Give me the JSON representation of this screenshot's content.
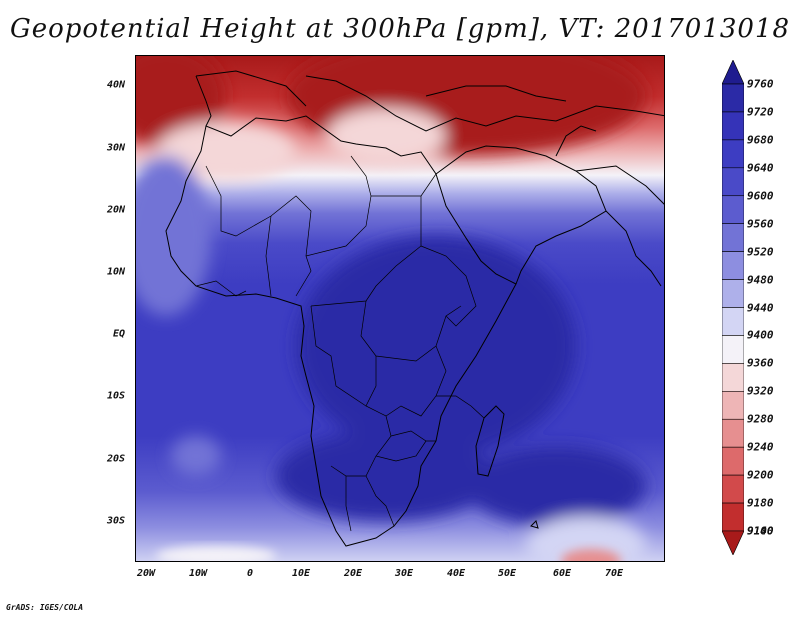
{
  "title": "Geopotential Height at 300hPa [gpm], VT: 2017013018",
  "footer": "GrADS: IGES/COLA",
  "map": {
    "projection": "latlon",
    "lon_range": [
      -23,
      80
    ],
    "lat_range": [
      -36,
      45
    ],
    "y_ticks": [
      "40N",
      "30N",
      "20N",
      "10N",
      "EQ",
      "10S",
      "20S",
      "30S"
    ],
    "x_ticks": [
      "20W",
      "10W",
      "0",
      "10E",
      "20E",
      "30E",
      "40E",
      "50E",
      "60E",
      "70E"
    ]
  },
  "colorbar": {
    "levels": [
      "9760",
      "9720",
      "9680",
      "9640",
      "9600",
      "9560",
      "9520",
      "9480",
      "9440",
      "9400",
      "9360",
      "9320",
      "9280",
      "9240",
      "9200",
      "9180",
      "9140",
      "9100"
    ],
    "colors": [
      "#1f1c8f",
      "#2b2aa6",
      "#3533b8",
      "#3d3dc2",
      "#4a4ac8",
      "#5c5ccf",
      "#7273d6",
      "#8d8ee0",
      "#aeb0ea",
      "#d3d5f4",
      "#f4f2f8",
      "#f4d7d8",
      "#eeb5b6",
      "#e68f90",
      "#dd6a6b",
      "#d24a4b",
      "#c22e2e",
      "#a81a1a"
    ]
  }
}
